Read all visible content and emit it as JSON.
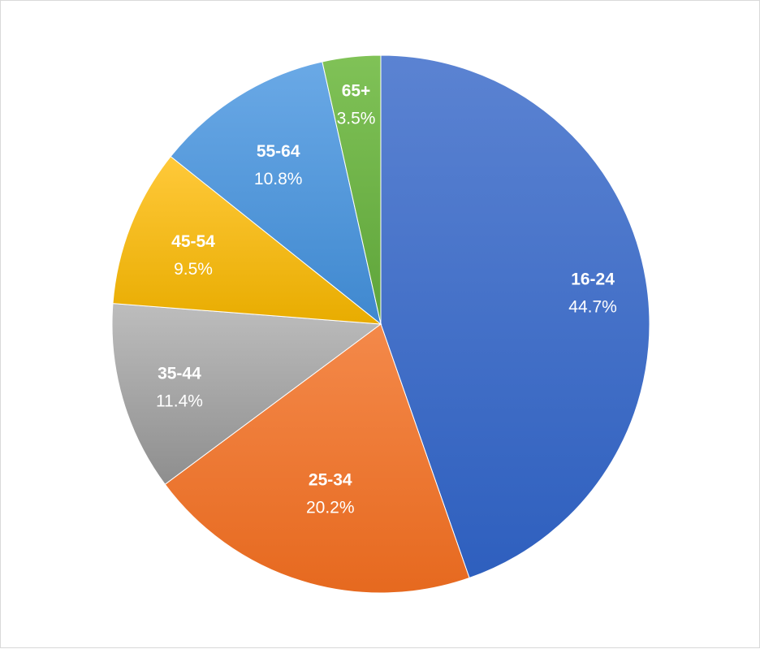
{
  "chart_data": {
    "type": "pie",
    "title": "",
    "start_angle_deg": 0,
    "direction": "clockwise",
    "slices": [
      {
        "label": "16-24",
        "value": 44.7,
        "display": "44.7%",
        "color_light": "#5b83d2",
        "color_dark": "#2e5fbe"
      },
      {
        "label": "25-34",
        "value": 20.2,
        "display": "20.2%",
        "color_light": "#f4894a",
        "color_dark": "#e6691f"
      },
      {
        "label": "35-44",
        "value": 11.4,
        "display": "11.4%",
        "color_light": "#bdbdbd",
        "color_dark": "#8e8e8e"
      },
      {
        "label": "45-54",
        "value": 9.5,
        "display": "9.5%",
        "color_light": "#ffc93a",
        "color_dark": "#e8ac00"
      },
      {
        "label": "55-64",
        "value": 10.8,
        "display": "10.8%",
        "color_light": "#6aa9e6",
        "color_dark": "#3f88cf"
      },
      {
        "label": "65+",
        "value": 3.5,
        "display": "3.5%",
        "color_light": "#80c257",
        "color_dark": "#5ea43a"
      }
    ],
    "legend": "none"
  }
}
